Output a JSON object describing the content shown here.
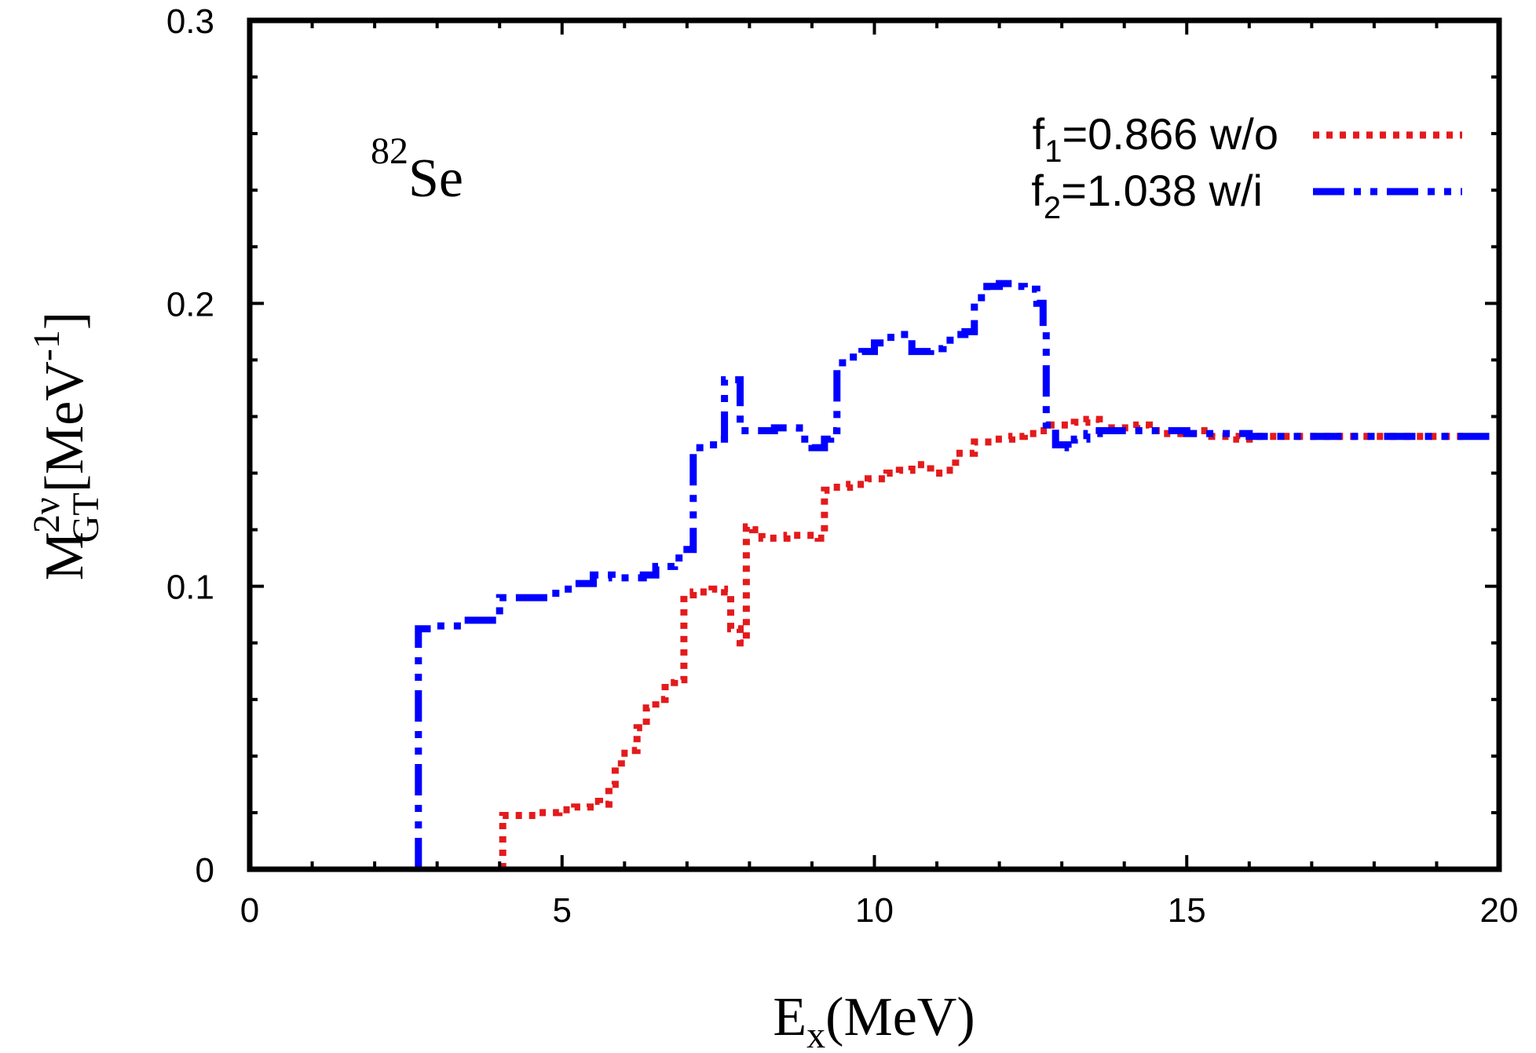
{
  "chart_data": {
    "type": "line",
    "xlabel_main": "E",
    "xlabel_sub": "x",
    "xlabel_unit": "(MeV)",
    "ylabel_main": "M",
    "ylabel_sup": "2ν",
    "ylabel_sub": "GT",
    "ylabel_unit_pre": "[MeV",
    "ylabel_unit_sup": "-1",
    "ylabel_unit_post": "]",
    "annotation_sup": "82",
    "annotation_main": "Se",
    "xlim": [
      0,
      20
    ],
    "ylim": [
      0,
      0.3
    ],
    "xticks": [
      0,
      5,
      10,
      15,
      20
    ],
    "xtick_labels": [
      "0",
      "5",
      "10",
      "15",
      "20"
    ],
    "yticks": [
      0,
      0.1,
      0.2,
      0.3
    ],
    "ytick_labels": [
      "0",
      "0.1",
      "0.2",
      "0.3"
    ],
    "legend_position": "top-right",
    "grid": false,
    "series": [
      {
        "name_main": "f",
        "name_sub": "1",
        "name_rest": "=0.866 w/o",
        "color": "#e41a1c",
        "style": "dotted",
        "x": [
          4.05,
          4.05,
          4.3,
          4.6,
          4.95,
          5.2,
          5.45,
          5.6,
          5.75,
          5.85,
          5.95,
          6.1,
          6.2,
          6.35,
          6.5,
          6.65,
          6.8,
          6.95,
          7.1,
          7.4,
          7.6,
          7.7,
          7.85,
          7.95,
          8.05,
          8.2,
          8.35,
          8.6,
          8.9,
          9.1,
          9.2,
          9.3,
          9.6,
          9.9,
          10.2,
          10.4,
          10.6,
          10.9,
          11.1,
          11.3,
          11.6,
          11.9,
          12.2,
          12.4,
          12.6,
          12.8,
          13.0,
          13.2,
          13.4,
          13.6,
          13.8,
          14.0,
          14.2,
          14.4,
          14.6,
          14.8,
          15.0,
          15.2,
          15.4,
          15.6,
          15.8,
          16.0,
          16.4,
          17.0,
          17.5,
          18.0,
          18.5,
          19.0,
          19.5
        ],
        "y": [
          0,
          0.019,
          0.019,
          0.02,
          0.021,
          0.022,
          0.024,
          0.023,
          0.03,
          0.036,
          0.041,
          0.042,
          0.05,
          0.057,
          0.06,
          0.066,
          0.067,
          0.097,
          0.098,
          0.099,
          0.098,
          0.085,
          0.08,
          0.121,
          0.12,
          0.117,
          0.117,
          0.118,
          0.118,
          0.117,
          0.134,
          0.135,
          0.136,
          0.138,
          0.14,
          0.141,
          0.143,
          0.14,
          0.141,
          0.147,
          0.151,
          0.152,
          0.153,
          0.154,
          0.155,
          0.157,
          0.157,
          0.158,
          0.159,
          0.155,
          0.156,
          0.156,
          0.157,
          0.155,
          0.154,
          0.154,
          0.154,
          0.155,
          0.153,
          0.153,
          0.152,
          0.153,
          0.153,
          0.153,
          0.153,
          0.153,
          0.153,
          0.153,
          0.153
        ]
      },
      {
        "name_main": "f",
        "name_sub": "2",
        "name_rest": "=1.038 w/i",
        "color": "#0000ff",
        "style": "dash-dot",
        "x": [
          2.7,
          2.7,
          3.0,
          3.4,
          3.9,
          4.0,
          4.3,
          4.6,
          4.9,
          5.2,
          5.5,
          5.8,
          6.1,
          6.3,
          6.5,
          6.8,
          7.0,
          7.1,
          7.3,
          7.5,
          7.6,
          7.7,
          7.85,
          8.1,
          8.4,
          8.6,
          8.8,
          9.0,
          9.2,
          9.3,
          9.4,
          9.6,
          9.8,
          10.0,
          10.2,
          10.4,
          10.55,
          10.6,
          10.9,
          11.1,
          11.3,
          11.45,
          11.6,
          11.8,
          12.0,
          12.2,
          12.4,
          12.6,
          12.7,
          12.75,
          12.9,
          13.1,
          13.2,
          13.4,
          13.6,
          13.9,
          14.2,
          14.6,
          15.0,
          15.5,
          16.0,
          16.5,
          17.0,
          18.0,
          19.0,
          20.0
        ],
        "y": [
          0,
          0.085,
          0.086,
          0.088,
          0.088,
          0.096,
          0.096,
          0.096,
          0.099,
          0.101,
          0.104,
          0.103,
          0.103,
          0.104,
          0.107,
          0.11,
          0.113,
          0.149,
          0.15,
          0.152,
          0.173,
          0.173,
          0.155,
          0.155,
          0.156,
          0.156,
          0.152,
          0.149,
          0.152,
          0.155,
          0.179,
          0.181,
          0.183,
          0.186,
          0.188,
          0.189,
          0.188,
          0.183,
          0.184,
          0.187,
          0.189,
          0.19,
          0.202,
          0.206,
          0.207,
          0.206,
          0.205,
          0.2,
          0.19,
          0.157,
          0.15,
          0.149,
          0.152,
          0.154,
          0.155,
          0.155,
          0.155,
          0.155,
          0.154,
          0.154,
          0.153,
          0.153,
          0.153,
          0.153,
          0.153,
          0.153
        ]
      }
    ]
  }
}
